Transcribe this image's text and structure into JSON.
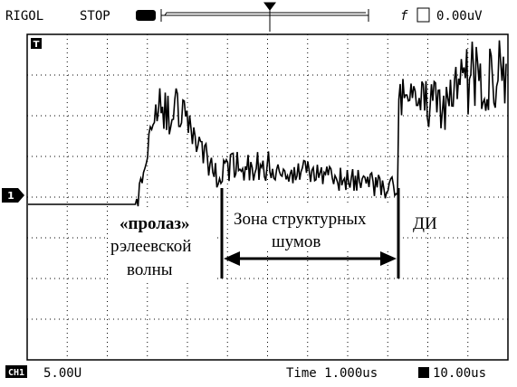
{
  "header": {
    "brand": "RIGOL",
    "status": "STOP",
    "trigger_level": "0.00uV"
  },
  "markers": {
    "trigger": "T",
    "channel": "1"
  },
  "footer": {
    "channel_label": "CH1",
    "volts_per_div": "5.00U",
    "time_base": "Time 1.000us",
    "delay": "10.00us"
  },
  "annotations": {
    "left": [
      "«пролаз»",
      "рэлеевской",
      "волны"
    ],
    "zone": [
      "Зона структурных",
      "шумов"
    ],
    "right": "ДИ"
  }
}
